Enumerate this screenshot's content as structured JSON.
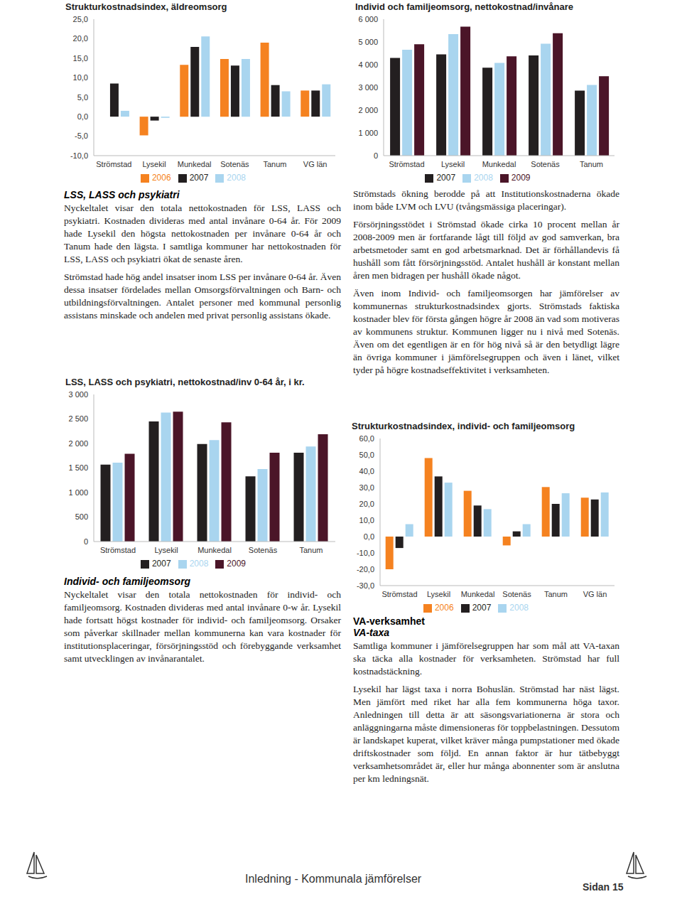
{
  "chart_data": [
    {
      "type": "bar",
      "title": "Strukturkostnadsindex, äldreomsorg",
      "categories": [
        "Strömstad",
        "Lysekil",
        "Munkedal",
        "Sotenäs",
        "Tanum",
        "VG län"
      ],
      "series": [
        {
          "name": "2006",
          "color": "#f58220",
          "values": [
            0,
            -4.8,
            13.3,
            14.8,
            19.0,
            6.7
          ]
        },
        {
          "name": "2007",
          "color": "#231f20",
          "values": [
            8.5,
            -1.0,
            17.9,
            13.1,
            8.1,
            6.7
          ]
        },
        {
          "name": "2008",
          "color": "#a9d5ef",
          "values": [
            1.5,
            -0.3,
            20.6,
            14.8,
            6.5,
            8.3
          ]
        }
      ],
      "ylim": [
        -10,
        25
      ],
      "yticks": [
        {
          "value": -10,
          "label": "-10,0"
        },
        {
          "value": -5,
          "label": "-5,0"
        },
        {
          "value": 0,
          "label": "0,0"
        },
        {
          "value": 5,
          "label": "5,0"
        },
        {
          "value": 10,
          "label": "10,0"
        },
        {
          "value": 15,
          "label": "15,0"
        },
        {
          "value": 20,
          "label": "20,0"
        },
        {
          "value": 25,
          "label": "25,0"
        }
      ],
      "grid": false,
      "legend": "bottom"
    },
    {
      "type": "bar",
      "title": "Individ och familjeomsorg, nettokostnad/invånare",
      "categories": [
        "Strömstad",
        "Lysekil",
        "Munkedal",
        "Sotenäs",
        "Tanum"
      ],
      "series": [
        {
          "name": "2007",
          "color": "#231f20",
          "values": [
            4300,
            4450,
            3870,
            4410,
            2860
          ]
        },
        {
          "name": "2008",
          "color": "#a9d5ef",
          "values": [
            4660,
            5340,
            4080,
            4920,
            3110
          ]
        },
        {
          "name": "2009",
          "color": "#4b1528",
          "values": [
            4900,
            5670,
            4370,
            5380,
            3490
          ]
        }
      ],
      "ylim": [
        0,
        6000
      ],
      "yticks": [
        0,
        {
          "value": 1000,
          "label": "1 000"
        },
        {
          "value": 2000,
          "label": "2 000"
        },
        {
          "value": 3000,
          "label": "3 000"
        },
        {
          "value": 4000,
          "label": "4 000"
        },
        {
          "value": 5000,
          "label": "5 000"
        },
        {
          "value": 6000,
          "label": "6 000"
        }
      ],
      "grid": false,
      "legend": "bottom"
    },
    {
      "type": "bar",
      "title": "LSS, LASS och psykiatri, nettokostnad/inv 0-64 år, i kr.",
      "categories": [
        "Strömstad",
        "Lysekil",
        "Munkedal",
        "Sotenäs",
        "Tanum"
      ],
      "series": [
        {
          "name": "2007",
          "color": "#231f20",
          "values": [
            1570,
            2450,
            1990,
            1330,
            1810
          ]
        },
        {
          "name": "2008",
          "color": "#a9d5ef",
          "values": [
            1610,
            2630,
            2070,
            1480,
            1940
          ]
        },
        {
          "name": "2009",
          "color": "#4b1528",
          "values": [
            1790,
            2650,
            2430,
            1810,
            2190
          ]
        }
      ],
      "ylim": [
        0,
        3000
      ],
      "yticks": [
        0,
        500,
        {
          "value": 1000,
          "label": "1 000"
        },
        {
          "value": 1500,
          "label": "1 500"
        },
        {
          "value": 2000,
          "label": "2 000"
        },
        {
          "value": 2500,
          "label": "2 500"
        },
        {
          "value": 3000,
          "label": "3 000"
        }
      ],
      "grid": false,
      "legend": "bottom"
    },
    {
      "type": "bar",
      "title": "Strukturkostnadsindex, individ- och familjeomsorg",
      "categories": [
        "Strömstad",
        "Lysekil",
        "Munkedal",
        "Sotenäs",
        "Tanum",
        "VG län"
      ],
      "series": [
        {
          "name": "2006",
          "color": "#f58220",
          "values": [
            -20,
            48,
            28,
            -5.4,
            30.3,
            23.8
          ]
        },
        {
          "name": "2007",
          "color": "#231f20",
          "values": [
            -7,
            36.8,
            19,
            3.2,
            20,
            22.7
          ]
        },
        {
          "name": "2008",
          "color": "#a9d5ef",
          "values": [
            7.6,
            33,
            16.8,
            7.6,
            26.5,
            27
          ]
        }
      ],
      "ylim": [
        -30,
        60
      ],
      "yticks": [
        {
          "value": -30,
          "label": "-30,0"
        },
        {
          "value": -20,
          "label": "-20,0"
        },
        {
          "value": -10,
          "label": "-10,0"
        },
        {
          "value": 0,
          "label": "0,0"
        },
        {
          "value": 10,
          "label": "10,0"
        },
        {
          "value": 20,
          "label": "20,0"
        },
        {
          "value": 30,
          "label": "30,0"
        },
        {
          "value": 40,
          "label": "40,0"
        },
        {
          "value": 50,
          "label": "50,0"
        },
        {
          "value": 60,
          "label": "60,0"
        }
      ],
      "grid": false,
      "legend": "bottom"
    }
  ],
  "text": {
    "lss": {
      "heading": "LSS, LASS och psykiatri",
      "paragraphs": [
        "Nyckeltalet visar den totala nettokostnaden för LSS, LASS och psykiatri. Kostnaden divideras med antal invånare 0-64 år. För 2009 hade Lysekil den högsta nettokostnaden per invånare 0-64 år och Tanum hade den lägsta. I samtliga kommuner har nettokostnaden för LSS, LASS och psykiatri ökat de senaste åren.",
        "Strömstad hade hög andel insatser inom LSS per invånare 0-64 år. Även dessa insatser fördelades mellan Omsorgsförvaltningen och Barn- och utbildningsförvaltningen. Antalet personer med kommunal personlig assistans minskade och andelen med privat personlig assistans ökade."
      ]
    },
    "ifo": {
      "heading": "Individ- och familjeomsorg",
      "paragraphs": [
        "Nyckeltalet visar den totala nettokostnaden för individ- och familjeomsorg. Kostnaden divideras med antal invånare 0-w år. Lysekil hade fortsatt högst kostnader för individ- och familjeomsorg. Orsaker som påverkar skillnader mellan kommunerna kan vara kostnader för institutionsplaceringar, försörjningsstöd och förebyggande verksamhet samt utvecklingen av invånarantalet."
      ]
    },
    "ifo_right": {
      "paragraphs": [
        "Strömstads ökning berodde på att Institutionskostnaderna ökade inom både LVM och LVU (tvångsmässiga placeringar).",
        "Försörjningsstödet i Strömstad ökade cirka 10 procent mellan år 2008-2009 men är fortfarande lågt till följd av god samverkan, bra arbetsmetoder samt en god arbetsmarknad. Det är förhållandevis få hushåll som fått försörjningsstöd. Antalet hushåll är konstant mellan åren men bidragen per hushåll ökade något.",
        "Även inom Individ- och familjeomsorgen har jämförelser av kommunernas strukturkostnadsindex gjorts. Strömstads faktiska kostnader blev för första gången högre år 2008 än vad som motiveras av kommunens struktur. Kommunen ligger nu i nivå med Sotenäs. Även om det egentligen är en för hög nivå så är den betydligt lägre än övriga kommuner i jämförelsegruppen och även i länet, vilket tyder på högre kostnadseffektivitet i verksamheten."
      ]
    },
    "va": {
      "heading": "VA-verksamhet",
      "subheading": "VA-taxa",
      "paragraphs": [
        "Samtliga kommuner i jämförelsegruppen har som mål att VA-taxan ska täcka alla kostnader för verksamheten. Strömstad har full kostnadstäckning.",
        "Lysekil har lägst taxa i norra Bohuslän. Strömstad har näst lägst. Men jämfört med riket har alla fem kommunerna höga taxor. Anledningen till detta är att säsongsvariationerna är stora och anläggningarna måste dimensioneras för toppbelastningen. Dessutom är landskapet kuperat, vilket kräver många pumpstationer med ökade driftskostnader som följd. En annan faktor är hur tätbebyggt verksamhetsområdet är, eller hur många abonnenter som är anslutna per km ledningsnät."
      ]
    },
    "footer": {
      "section": "Inledning - Kommunala jämförelser",
      "page": "Sidan 15"
    }
  }
}
